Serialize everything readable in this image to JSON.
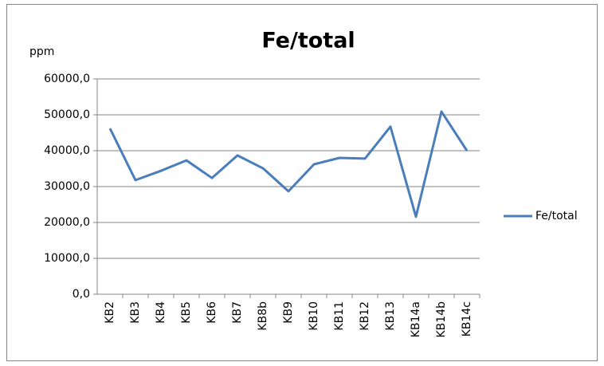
{
  "chart_data": {
    "type": "line",
    "title": "Fe/total",
    "y_axis_label": "ppm",
    "categories": [
      "KB2",
      "KB3",
      "KB4",
      "KB5",
      "KB6",
      "KB7",
      "KB8b",
      "KB9",
      "KB10",
      "KB11",
      "KB12",
      "KB13",
      "KB14a",
      "KB14b",
      "KB14c"
    ],
    "series": [
      {
        "name": "Fe/total",
        "color": "#4a7ebb",
        "values": [
          46200,
          31800,
          34400,
          37300,
          32400,
          38700,
          35100,
          28700,
          36200,
          38000,
          37800,
          46700,
          21600,
          50900,
          40000
        ]
      }
    ],
    "ylim": [
      0,
      60000
    ],
    "yticks": [
      {
        "value": 0,
        "label": "0,0"
      },
      {
        "value": 10000,
        "label": "10000,0"
      },
      {
        "value": 20000,
        "label": "20000,0"
      },
      {
        "value": 30000,
        "label": "30000,0"
      },
      {
        "value": 40000,
        "label": "40000,0"
      },
      {
        "value": 50000,
        "label": "50000,0"
      },
      {
        "value": 60000,
        "label": "60000,0"
      }
    ],
    "grid": true,
    "legend": "right"
  }
}
